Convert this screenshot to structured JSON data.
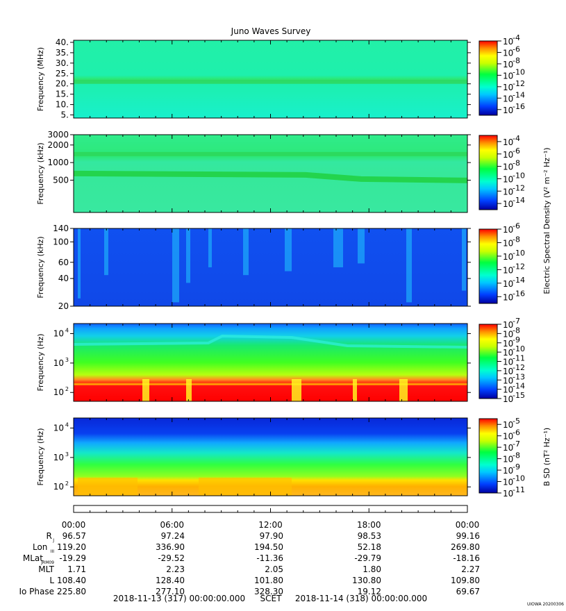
{
  "title": "Juno Waves Survey",
  "panels": [
    {
      "id": "p1",
      "ylabel": "Frequency (MHz)",
      "yscale": "linear",
      "yrange": [
        3.5,
        41
      ],
      "yticks": [
        {
          "v": 40,
          "t": "40."
        },
        {
          "v": 35,
          "t": "35."
        },
        {
          "v": 30,
          "t": "30."
        },
        {
          "v": 25,
          "t": "25."
        },
        {
          "v": 20,
          "t": "20."
        },
        {
          "v": 15,
          "t": "15."
        },
        {
          "v": 10,
          "t": "10."
        },
        {
          "v": 5,
          "t": "5."
        }
      ],
      "colorbar": {
        "min": -17,
        "max": -4,
        "ticks": [
          {
            "e": -4,
            "t": "-4"
          },
          {
            "e": -6,
            "t": "-6"
          },
          {
            "e": -8,
            "t": "-8"
          },
          {
            "e": -10,
            "t": "-10"
          },
          {
            "e": -12,
            "t": "-12"
          },
          {
            "e": -14,
            "t": "-14"
          },
          {
            "e": -16,
            "t": "-16"
          }
        ]
      }
    },
    {
      "id": "p2",
      "ylabel": "Frequency (kHz)",
      "yscale": "log",
      "yrange": [
        140,
        3000
      ],
      "yticks": [
        {
          "v": 3000,
          "t": "3000"
        },
        {
          "v": 2000,
          "t": "2000"
        },
        {
          "v": 1000,
          "t": "1000"
        },
        {
          "v": 500,
          "t": "500"
        }
      ],
      "colorbar": {
        "min": -15,
        "max": -3,
        "ticks": [
          {
            "e": -4,
            "t": "-4"
          },
          {
            "e": -6,
            "t": "-6"
          },
          {
            "e": -8,
            "t": "-8"
          },
          {
            "e": -10,
            "t": "-10"
          },
          {
            "e": -12,
            "t": "-12"
          },
          {
            "e": -14,
            "t": "-14"
          }
        ]
      }
    },
    {
      "id": "p3",
      "ylabel": "Frequency (kHz)",
      "yscale": "log",
      "yrange": [
        20,
        140
      ],
      "yticks": [
        {
          "v": 140,
          "t": "140"
        },
        {
          "v": 100,
          "t": "100"
        },
        {
          "v": 60,
          "t": "60"
        },
        {
          "v": 40,
          "t": "40"
        },
        {
          "v": 20,
          "t": "20"
        }
      ],
      "colorbar": {
        "min": -17,
        "max": -6,
        "ticks": [
          {
            "e": -6,
            "t": "-6"
          },
          {
            "e": -8,
            "t": "-8"
          },
          {
            "e": -10,
            "t": "-10"
          },
          {
            "e": -12,
            "t": "-12"
          },
          {
            "e": -14,
            "t": "-14"
          },
          {
            "e": -16,
            "t": "-16"
          }
        ]
      }
    },
    {
      "id": "p4",
      "ylabel": "Frequency (Hz)",
      "yscale": "log",
      "yrange": [
        50,
        22000
      ],
      "yticks": [
        {
          "v": 10000,
          "t": "10",
          "sup": "4"
        },
        {
          "v": 1000,
          "t": "10",
          "sup": "3"
        },
        {
          "v": 100,
          "t": "10",
          "sup": "2"
        }
      ],
      "colorbar": {
        "min": -15,
        "max": -7,
        "ticks": [
          {
            "e": -7,
            "t": "-7"
          },
          {
            "e": -8,
            "t": "-8"
          },
          {
            "e": -9,
            "t": "-9"
          },
          {
            "e": -10,
            "t": "-10"
          },
          {
            "e": -11,
            "t": "-11"
          },
          {
            "e": -12,
            "t": "-12"
          },
          {
            "e": -13,
            "t": "-13"
          },
          {
            "e": -14,
            "t": "-14"
          },
          {
            "e": -15,
            "t": "-15"
          }
        ]
      }
    },
    {
      "id": "p5",
      "ylabel": "Frequency (Hz)",
      "yscale": "log",
      "yrange": [
        50,
        22000
      ],
      "yticks": [
        {
          "v": 10000,
          "t": "10",
          "sup": "4"
        },
        {
          "v": 1000,
          "t": "10",
          "sup": "3"
        },
        {
          "v": 100,
          "t": "10",
          "sup": "2"
        }
      ],
      "colorbar": {
        "min": -11,
        "max": -4.5,
        "ticks": [
          {
            "e": -5,
            "t": "-5"
          },
          {
            "e": -6,
            "t": "-6"
          },
          {
            "e": -7,
            "t": "-7"
          },
          {
            "e": -8,
            "t": "-8"
          },
          {
            "e": -9,
            "t": "-9"
          },
          {
            "e": -10,
            "t": "-10"
          },
          {
            "e": -11,
            "t": "-11"
          }
        ]
      }
    }
  ],
  "colorbar_labels": {
    "electric": "Electric Spectral Density (V² m⁻² Hz⁻¹)",
    "magnetic": "B SD (nT² Hz⁻¹)"
  },
  "time_axis": {
    "labels": [
      "00:00",
      "06:00",
      "12:00",
      "18:00",
      "00:00"
    ]
  },
  "ephemeris": [
    {
      "label": "R",
      "sub": "J",
      "values": [
        "96.57",
        "97.24",
        "97.90",
        "98.53",
        "99.16"
      ]
    },
    {
      "label": "Lon",
      "sub": "III",
      "values": [
        "119.20",
        "336.90",
        "194.50",
        "52.18",
        "269.80"
      ]
    },
    {
      "label": "MLat",
      "sub": "JRM09",
      "values": [
        "-19.29",
        "-29.52",
        "-11.36",
        "-29.79",
        "-18.16"
      ]
    },
    {
      "label": "MLT",
      "sub": "",
      "values": [
        "1.71",
        "2.23",
        "2.05",
        "1.80",
        "2.27"
      ]
    },
    {
      "label": "L",
      "sub": "",
      "values": [
        "108.40",
        "128.40",
        "101.80",
        "130.80",
        "109.80"
      ]
    },
    {
      "label": "Io Phase",
      "sub": "",
      "values": [
        "225.80",
        "277.10",
        "328.30",
        "19.12",
        "69.67"
      ]
    }
  ],
  "footer": {
    "start": "2018-11-13 (317) 00:00:00.000",
    "mid": "SCET",
    "end": "2018-11-14 (318) 00:00:00.000"
  },
  "stamp": "UIOWA 20200306",
  "chart_data": {
    "type": "heatmap",
    "title": "Juno Waves Survey",
    "x_range": [
      "2018-11-13 00:00",
      "2018-11-14 00:00"
    ],
    "panels": [
      {
        "ylabel": "Frequency (MHz)",
        "yrange": [
          3.5,
          41
        ],
        "color_range_log10": [
          -17,
          -4
        ],
        "features": [
          {
            "description": "horizontal band",
            "freq_MHz": 21
          }
        ]
      },
      {
        "ylabel": "Frequency (kHz)",
        "yrange": [
          140,
          3000
        ],
        "color_range_log10": [
          -15,
          -3
        ],
        "features": [
          {
            "description": "horizontal band",
            "freq_kHz": 1400
          },
          {
            "description": "horizontal band",
            "freq_kHz": 650
          }
        ]
      },
      {
        "ylabel": "Frequency (kHz)",
        "yrange": [
          20,
          140
        ],
        "color_range_log10": [
          -17,
          -6
        ]
      },
      {
        "ylabel": "Frequency (Hz)",
        "yrange": [
          50,
          22000
        ],
        "color_range_log10": [
          -15,
          -7
        ]
      },
      {
        "ylabel": "Frequency (Hz)",
        "yrange": [
          50,
          22000
        ],
        "color_range_log10": [
          -11,
          -4.5
        ]
      }
    ]
  }
}
